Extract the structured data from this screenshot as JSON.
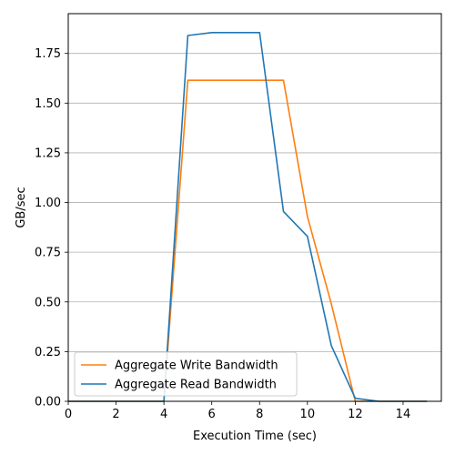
{
  "chart_data": {
    "type": "line",
    "xlabel": "Execution Time (sec)",
    "ylabel": "GB/sec",
    "xlim": [
      0,
      15.6
    ],
    "ylim": [
      0,
      1.95
    ],
    "xticks": [
      0,
      2,
      4,
      6,
      8,
      10,
      12,
      14
    ],
    "xtick_labels": [
      "0",
      "2",
      "4",
      "6",
      "8",
      "10",
      "12",
      "14"
    ],
    "yticks": [
      0,
      0.25,
      0.5,
      0.75,
      1.0,
      1.25,
      1.5,
      1.75
    ],
    "ytick_labels": [
      "0.00",
      "0.25",
      "0.50",
      "0.75",
      "1.00",
      "1.25",
      "1.50",
      "1.75"
    ],
    "grid": "horizontal",
    "legend_position": "lower-left",
    "series": [
      {
        "name": "Aggregate Write Bandwidth",
        "color": "#ff7f0e",
        "x": [
          0,
          1,
          2,
          3,
          4,
          5,
          6,
          7,
          8,
          9,
          10,
          11,
          12,
          13,
          14,
          15
        ],
        "y": [
          0,
          0,
          0,
          0,
          0,
          1.615,
          1.615,
          1.615,
          1.615,
          1.615,
          0.93,
          0.49,
          0.0,
          0.0,
          0.0,
          0.0
        ]
      },
      {
        "name": "Aggregate Read Bandwidth",
        "color": "#1f77b4",
        "x": [
          0,
          1,
          2,
          3,
          4,
          5,
          6,
          7,
          8,
          9,
          10,
          11,
          12,
          13,
          14,
          15
        ],
        "y": [
          0,
          0,
          0,
          0,
          0,
          1.84,
          1.855,
          1.855,
          1.855,
          0.955,
          0.83,
          0.28,
          0.015,
          0.0,
          0.0,
          0.0
        ]
      }
    ]
  }
}
